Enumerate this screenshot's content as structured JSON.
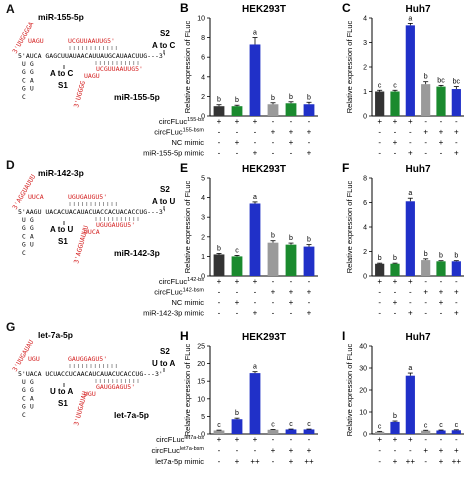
{
  "panels": {
    "A": {
      "label": "A",
      "mirna_top": "miR-155-5p",
      "mirna_bottom": "miR-155-5p",
      "red_top_strand": "3'UUGGGGA",
      "red_top_loop": "UAGU",
      "red_top_run": "UCGUUAAUUG5'",
      "red_bottom_strand": "3'UGGGG",
      "red_bottom_loop": "UAGU",
      "red_bottom_run": "UCGUUAAUUG5'",
      "main_strand": "5'AUCA  GAGCUUAUAACAUUAUGCAUAACUUG---3'",
      "s1": "S1",
      "s1_mut": "A to C",
      "s2": "S2",
      "s2_mut": "A to C",
      "stem_letters": [
        "U",
        "G",
        "C",
        "G",
        "C",
        "G",
        "G",
        "A",
        "U"
      ]
    },
    "D": {
      "label": "D",
      "mirna_top": "miR-142-3p",
      "mirna_bottom": "miR-142-3p",
      "red_top_strand": "3'AGGUAUUU",
      "red_top_loop": "UUCA",
      "red_top_run": "UGUGAUGU5'",
      "red_bottom_strand": "3'AGGUAUUU",
      "red_bottom_loop": "UUCA",
      "red_bottom_run": "UGUGAUGU5'",
      "main_strand": "5'AAGU  UACACUACAUACUACCACUACACCUG---3'",
      "s1": "S1",
      "s1_mut": "A to U",
      "s2": "S2",
      "s2_mut": "A to U",
      "stem_letters": [
        "U",
        "G",
        "C",
        "G",
        "C",
        "G",
        "G",
        "A",
        "U"
      ]
    },
    "G": {
      "label": "G",
      "mirna_top": "let-7a-5p",
      "mirna_bottom": "let-7a-5p",
      "red_top_strand": "3'UUGAUAU",
      "red_top_loop": "UGU",
      "red_top_run": "GAUGGAGU5'",
      "red_bottom_strand": "3'UUGAUAU",
      "red_bottom_loop": "UGU",
      "red_bottom_run": "GAUGGAGU5'",
      "main_strand": "5'UACA  UCUACCUCAACAUCAUACUCACCUG---3'",
      "s1": "S1",
      "s1_mut": "U to A",
      "s2": "S2",
      "s2_mut": "U to A",
      "stem_letters": [
        "U",
        "G",
        "C",
        "G",
        "C",
        "G",
        "G",
        "A",
        "U"
      ]
    }
  },
  "ylabel": "Relative expression of FLuc",
  "colors": {
    "black": "#333333",
    "green": "#1a8a2e",
    "blue": "#2030c8",
    "gray": "#9a9a9a"
  },
  "chart_data": [
    {
      "panel": "B",
      "type": "bar",
      "title": "HEK293T",
      "ylabel": "Relative expression of FLuc",
      "ylim": [
        0,
        10
      ],
      "yticks": [
        0,
        2,
        4,
        6,
        8,
        10
      ],
      "bars": [
        {
          "value": 1.0,
          "error": 0.15,
          "color": "black",
          "letter": "b"
        },
        {
          "value": 1.0,
          "error": 0.1,
          "color": "green",
          "letter": "b"
        },
        {
          "value": 7.3,
          "error": 0.7,
          "color": "blue",
          "letter": "a"
        },
        {
          "value": 1.2,
          "error": 0.15,
          "color": "gray",
          "letter": "b"
        },
        {
          "value": 1.3,
          "error": 0.15,
          "color": "green",
          "letter": "b"
        },
        {
          "value": 1.2,
          "error": 0.2,
          "color": "blue",
          "letter": "b"
        }
      ],
      "rows": [
        {
          "label": "circFLuc",
          "sup": "155-bs",
          "marks": [
            "+",
            "+",
            "+",
            "-",
            "-",
            "-"
          ]
        },
        {
          "label": "circFLuc",
          "sup": "155-bsm",
          "marks": [
            "-",
            "-",
            "-",
            "+",
            "+",
            "+"
          ]
        },
        {
          "label": "NC mimic",
          "sup": "",
          "marks": [
            "-",
            "+",
            "-",
            "-",
            "+",
            "-"
          ]
        },
        {
          "label": "miR-155-5p mimic",
          "sup": "",
          "marks": [
            "-",
            "-",
            "+",
            "-",
            "-",
            "+"
          ]
        }
      ]
    },
    {
      "panel": "C",
      "type": "bar",
      "title": "Huh7",
      "ylabel": "Relative expression of FLuc",
      "ylim": [
        0,
        4
      ],
      "yticks": [
        0,
        1,
        2,
        3,
        4
      ],
      "bars": [
        {
          "value": 1.0,
          "error": 0.05,
          "color": "black",
          "letter": "c"
        },
        {
          "value": 1.0,
          "error": 0.05,
          "color": "green",
          "letter": "c"
        },
        {
          "value": 3.7,
          "error": 0.08,
          "color": "blue",
          "letter": "a"
        },
        {
          "value": 1.3,
          "error": 0.1,
          "color": "gray",
          "letter": "b"
        },
        {
          "value": 1.2,
          "error": 0.05,
          "color": "green",
          "letter": "bc"
        },
        {
          "value": 1.1,
          "error": 0.1,
          "color": "blue",
          "letter": "bc"
        }
      ],
      "rows": [
        {
          "label": "",
          "sup": "",
          "marks": [
            "+",
            "+",
            "+",
            "-",
            "-",
            "-"
          ]
        },
        {
          "label": "",
          "sup": "",
          "marks": [
            "-",
            "-",
            "-",
            "+",
            "+",
            "+"
          ]
        },
        {
          "label": "",
          "sup": "",
          "marks": [
            "-",
            "+",
            "-",
            "-",
            "+",
            "-"
          ]
        },
        {
          "label": "",
          "sup": "",
          "marks": [
            "-",
            "-",
            "+",
            "-",
            "-",
            "+"
          ]
        }
      ]
    },
    {
      "panel": "E",
      "type": "bar",
      "title": "HEK293T",
      "ylabel": "Relative expression of FLuc",
      "ylim": [
        0,
        5
      ],
      "yticks": [
        0,
        1,
        2,
        3,
        4,
        5
      ],
      "bars": [
        {
          "value": 1.1,
          "error": 0.05,
          "color": "black",
          "letter": "b"
        },
        {
          "value": 1.0,
          "error": 0.05,
          "color": "green",
          "letter": "c"
        },
        {
          "value": 3.7,
          "error": 0.08,
          "color": "blue",
          "letter": "a"
        },
        {
          "value": 1.7,
          "error": 0.1,
          "color": "gray",
          "letter": "b"
        },
        {
          "value": 1.6,
          "error": 0.08,
          "color": "green",
          "letter": "b"
        },
        {
          "value": 1.5,
          "error": 0.1,
          "color": "blue",
          "letter": "b"
        }
      ],
      "rows": [
        {
          "label": "circFLuc",
          "sup": "142-bs",
          "marks": [
            "+",
            "+",
            "+",
            "-",
            "-",
            "-"
          ]
        },
        {
          "label": "circFLuc",
          "sup": "142-bsm",
          "marks": [
            "-",
            "-",
            "-",
            "+",
            "+",
            "+"
          ]
        },
        {
          "label": "NC mimic",
          "sup": "",
          "marks": [
            "-",
            "+",
            "-",
            "-",
            "+",
            "-"
          ]
        },
        {
          "label": "miR-142-3p mimic",
          "sup": "",
          "marks": [
            "-",
            "-",
            "+",
            "-",
            "-",
            "+"
          ]
        }
      ]
    },
    {
      "panel": "F",
      "type": "bar",
      "title": "Huh7",
      "ylabel": "Relative expression of FLuc",
      "ylim": [
        0,
        8
      ],
      "yticks": [
        0,
        2,
        4,
        6,
        8
      ],
      "bars": [
        {
          "value": 1.0,
          "error": 0.05,
          "color": "black",
          "letter": "b"
        },
        {
          "value": 1.0,
          "error": 0.05,
          "color": "green",
          "letter": "b"
        },
        {
          "value": 6.1,
          "error": 0.25,
          "color": "blue",
          "letter": "a"
        },
        {
          "value": 1.3,
          "error": 0.1,
          "color": "gray",
          "letter": "b"
        },
        {
          "value": 1.2,
          "error": 0.05,
          "color": "green",
          "letter": "b"
        },
        {
          "value": 1.2,
          "error": 0.05,
          "color": "blue",
          "letter": "b"
        }
      ],
      "rows": [
        {
          "label": "",
          "sup": "",
          "marks": [
            "+",
            "+",
            "+",
            "-",
            "-",
            "-"
          ]
        },
        {
          "label": "",
          "sup": "",
          "marks": [
            "-",
            "-",
            "-",
            "+",
            "+",
            "+"
          ]
        },
        {
          "label": "",
          "sup": "",
          "marks": [
            "-",
            "+",
            "-",
            "-",
            "+",
            "-"
          ]
        },
        {
          "label": "",
          "sup": "",
          "marks": [
            "-",
            "-",
            "+",
            "-",
            "-",
            "+"
          ]
        }
      ]
    },
    {
      "panel": "H",
      "type": "bar",
      "title": "HEK293T",
      "ylabel": "Relative expression of FLuc",
      "ylim": [
        0,
        25
      ],
      "yticks": [
        0,
        5,
        10,
        15,
        20,
        25
      ],
      "bars": [
        {
          "value": 1.0,
          "error": 0.1,
          "color": "gray",
          "letter": "c"
        },
        {
          "value": 4.2,
          "error": 0.3,
          "color": "blue",
          "letter": "b"
        },
        {
          "value": 17.3,
          "error": 0.4,
          "color": "blue",
          "letter": "a"
        },
        {
          "value": 1.2,
          "error": 0.1,
          "color": "gray",
          "letter": "c"
        },
        {
          "value": 1.3,
          "error": 0.1,
          "color": "blue",
          "letter": "c"
        },
        {
          "value": 1.3,
          "error": 0.1,
          "color": "blue",
          "letter": "c"
        }
      ],
      "rows": [
        {
          "label": "circFLuc",
          "sup": "let7a-bs",
          "marks": [
            "+",
            "+",
            "+",
            "-",
            "-",
            "-"
          ]
        },
        {
          "label": "circFLuc",
          "sup": "let7a-bsm",
          "marks": [
            "-",
            "-",
            "-",
            "+",
            "+",
            "+"
          ]
        },
        {
          "label": "let7a-5p mimic",
          "sup": "",
          "marks": [
            "-",
            "+",
            "++",
            "-",
            "+",
            "++"
          ]
        }
      ]
    },
    {
      "panel": "I",
      "type": "bar",
      "title": "Huh7",
      "ylabel": "Relative expression of FLuc",
      "ylim": [
        0,
        40
      ],
      "yticks": [
        0,
        10,
        20,
        30,
        40
      ],
      "bars": [
        {
          "value": 1.0,
          "error": 0.2,
          "color": "gray",
          "letter": "c"
        },
        {
          "value": 5.5,
          "error": 0.4,
          "color": "blue",
          "letter": "b"
        },
        {
          "value": 26.5,
          "error": 1.2,
          "color": "blue",
          "letter": "a"
        },
        {
          "value": 1.5,
          "error": 0.2,
          "color": "gray",
          "letter": "c"
        },
        {
          "value": 1.6,
          "error": 0.2,
          "color": "blue",
          "letter": "c"
        },
        {
          "value": 1.7,
          "error": 0.2,
          "color": "blue",
          "letter": "c"
        }
      ],
      "rows": [
        {
          "label": "",
          "sup": "",
          "marks": [
            "+",
            "+",
            "+",
            "-",
            "-",
            "-"
          ]
        },
        {
          "label": "",
          "sup": "",
          "marks": [
            "-",
            "-",
            "-",
            "+",
            "+",
            "+"
          ]
        },
        {
          "label": "",
          "sup": "",
          "marks": [
            "-",
            "+",
            "++",
            "-",
            "+",
            "++"
          ]
        }
      ]
    }
  ]
}
